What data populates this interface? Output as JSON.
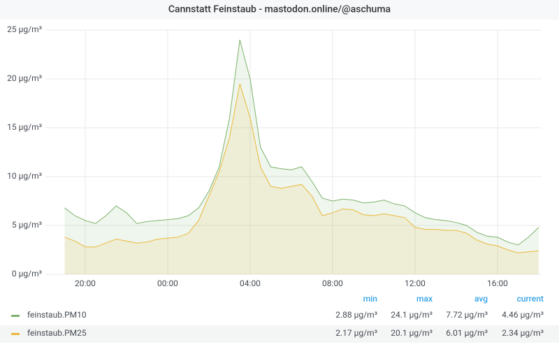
{
  "chart_data": {
    "type": "line",
    "title": "Cannstatt Feinstaub - mastodon.online/@aschuma",
    "x": [
      "19:00",
      "19:30",
      "20:00",
      "20:30",
      "21:00",
      "21:30",
      "22:00",
      "22:30",
      "23:00",
      "23:30",
      "00:00",
      "00:30",
      "01:00",
      "01:30",
      "02:00",
      "02:30",
      "03:00",
      "03:30",
      "04:00",
      "04:30",
      "05:00",
      "05:30",
      "06:00",
      "06:30",
      "07:00",
      "07:30",
      "08:00",
      "08:30",
      "09:00",
      "09:30",
      "10:00",
      "10:30",
      "11:00",
      "11:30",
      "12:00",
      "12:30",
      "13:00",
      "13:30",
      "14:00",
      "14:30",
      "15:00",
      "15:30",
      "16:00",
      "16:30",
      "17:00",
      "17:30",
      "18:00"
    ],
    "xticks": [
      "20:00",
      "00:00",
      "04:00",
      "08:00",
      "12:00",
      "16:00"
    ],
    "series": [
      {
        "name": "feinstaub.PM10",
        "color": "#7eb26d",
        "values": [
          6.8,
          6.0,
          5.5,
          5.2,
          6.0,
          7.0,
          6.3,
          5.2,
          5.4,
          5.5,
          5.6,
          5.7,
          6.0,
          6.8,
          8.5,
          11,
          16,
          24,
          20,
          13,
          11,
          10.8,
          10.7,
          11,
          9.5,
          7.8,
          7.5,
          7.7,
          7.6,
          7.3,
          7.4,
          7.6,
          7.2,
          7.0,
          6.3,
          5.8,
          5.6,
          5.5,
          5.3,
          5.0,
          4.3,
          3.9,
          3.8,
          3.3,
          3.0,
          3.8,
          4.8
        ],
        "stats": [
          {
            "value": 2.88,
            "label": "2.88 µg/m³"
          },
          {
            "value": 24.1,
            "label": "24.1 µg/m³"
          },
          {
            "value": 7.72,
            "label": "7.72 µg/m³"
          },
          {
            "value": 4.46,
            "label": "4.46 µg/m³"
          }
        ]
      },
      {
        "name": "feinstaub.PM25",
        "color": "#eab839",
        "values": [
          3.8,
          3.4,
          2.8,
          2.8,
          3.2,
          3.6,
          3.4,
          3.2,
          3.3,
          3.6,
          3.7,
          3.8,
          4.2,
          5.5,
          8,
          10.5,
          14,
          19.5,
          16,
          11,
          9,
          8.8,
          9.0,
          9.2,
          8.0,
          6.0,
          6.3,
          6.7,
          6.6,
          6.1,
          6.0,
          6.2,
          6.0,
          5.8,
          4.8,
          4.6,
          4.6,
          4.5,
          4.5,
          4.2,
          3.5,
          3.1,
          2.9,
          2.5,
          2.2,
          2.3,
          2.4
        ],
        "stats": [
          {
            "value": 2.17,
            "label": "2.17 µg/m³"
          },
          {
            "value": 20.1,
            "label": "20.1 µg/m³"
          },
          {
            "value": 6.01,
            "label": "6.01 µg/m³"
          },
          {
            "value": 2.34,
            "label": "2.34 µg/m³"
          }
        ]
      }
    ],
    "legend_columns": [
      "min",
      "max",
      "avg",
      "current"
    ],
    "ylim": [
      0,
      25
    ],
    "yticks": [
      {
        "value": 0,
        "label": "0 µg/m³"
      },
      {
        "value": 5,
        "label": "5 µg/m³"
      },
      {
        "value": 10,
        "label": "10 µg/m³"
      },
      {
        "value": 15,
        "label": "15 µg/m³"
      },
      {
        "value": 20,
        "label": "20 µg/m³"
      },
      {
        "value": 25,
        "label": "25 µg/m³"
      }
    ],
    "grid": true,
    "fill": true
  }
}
